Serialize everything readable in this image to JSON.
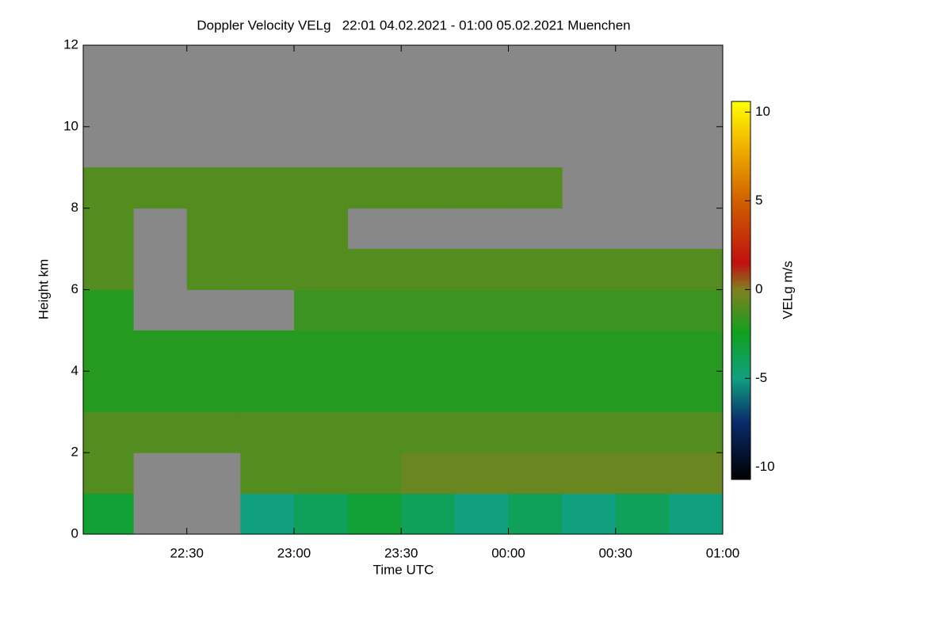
{
  "chart_data": {
    "type": "heatmap",
    "title": "Doppler Velocity VELg   22:01 04.02.2021 - 01:00 05.02.2021 Muenchen",
    "x_label": "Time UTC",
    "y_label": "Height km",
    "colorbar_label": "VELg m/s",
    "xlim": [
      22.0167,
      25
    ],
    "xticks": [
      {
        "value": 22.5,
        "label": "22:30"
      },
      {
        "value": 23,
        "label": "23:00"
      },
      {
        "value": 23.5,
        "label": "23:30"
      },
      {
        "value": 24,
        "label": "00:00"
      },
      {
        "value": 24.5,
        "label": "00:30"
      },
      {
        "value": 25,
        "label": "01:00"
      }
    ],
    "ylim": [
      0,
      12
    ],
    "yticks": [
      0,
      2,
      4,
      6,
      8,
      10,
      12
    ],
    "zlim": [
      -10.7,
      10.6
    ],
    "zticks": [
      -10,
      -5,
      0,
      5,
      10
    ],
    "background": "#888888",
    "colorscale": [
      {
        "value": -10.7,
        "color": "#000000"
      },
      {
        "value": -7.5,
        "color": "#0a2a6a"
      },
      {
        "value": -5,
        "color": "#10a080"
      },
      {
        "value": -2.5,
        "color": "#10a020"
      },
      {
        "value": 0,
        "color": "#808020"
      },
      {
        "value": 1.5,
        "color": "#c01010"
      },
      {
        "value": 5,
        "color": "#d06000"
      },
      {
        "value": 8,
        "color": "#f0b000"
      },
      {
        "value": 10.6,
        "color": "#ffff00"
      }
    ],
    "x": [
      22.125,
      22.375,
      22.625,
      22.875,
      23.125,
      23.375,
      23.625,
      23.875,
      24.125,
      24.375,
      24.625,
      24.875
    ],
    "y": [
      0.5,
      1.5,
      2.5,
      3.5,
      4.5,
      5.5,
      6.5,
      7.5,
      8.5,
      9.5,
      10.5,
      11.5
    ],
    "z": [
      [
        -3,
        null,
        null,
        -5,
        -4,
        -3,
        -4,
        -5,
        -4,
        -5,
        -4,
        -5
      ],
      [
        -1,
        null,
        null,
        -1,
        -1,
        -1,
        -0.5,
        -0.5,
        -0.5,
        -0.5,
        -0.5,
        -0.5
      ],
      [
        -1,
        -1,
        -1,
        -1,
        -1,
        -1,
        -1,
        -1,
        -1,
        -1,
        -1,
        -1
      ],
      [
        -2,
        -2,
        -2,
        -2,
        -2,
        -2,
        -2,
        -2,
        -2,
        -2,
        -2,
        -2
      ],
      [
        -2,
        -2,
        -2,
        -2,
        -2,
        -2,
        -2,
        -2,
        -2,
        -2,
        -2,
        -2
      ],
      [
        -2,
        null,
        null,
        null,
        -1.5,
        -1.5,
        -1.5,
        -1.5,
        -1.5,
        -1.5,
        -1.5,
        -1.5
      ],
      [
        -1,
        null,
        -1,
        -1,
        -1,
        -1,
        -1,
        -1,
        -1,
        -1,
        -1,
        -1
      ],
      [
        -1,
        null,
        -1,
        -1,
        -1,
        null,
        null,
        null,
        null,
        null,
        null,
        null
      ],
      [
        -1,
        -1,
        -1,
        -1,
        -1,
        -1,
        -1,
        -1,
        -1,
        null,
        null,
        null
      ],
      [
        null,
        null,
        null,
        null,
        null,
        null,
        null,
        null,
        null,
        null,
        null,
        null
      ],
      [
        null,
        null,
        null,
        null,
        null,
        null,
        null,
        null,
        null,
        null,
        null,
        null
      ],
      [
        null,
        null,
        null,
        null,
        null,
        null,
        null,
        null,
        null,
        null,
        null,
        null
      ]
    ]
  }
}
